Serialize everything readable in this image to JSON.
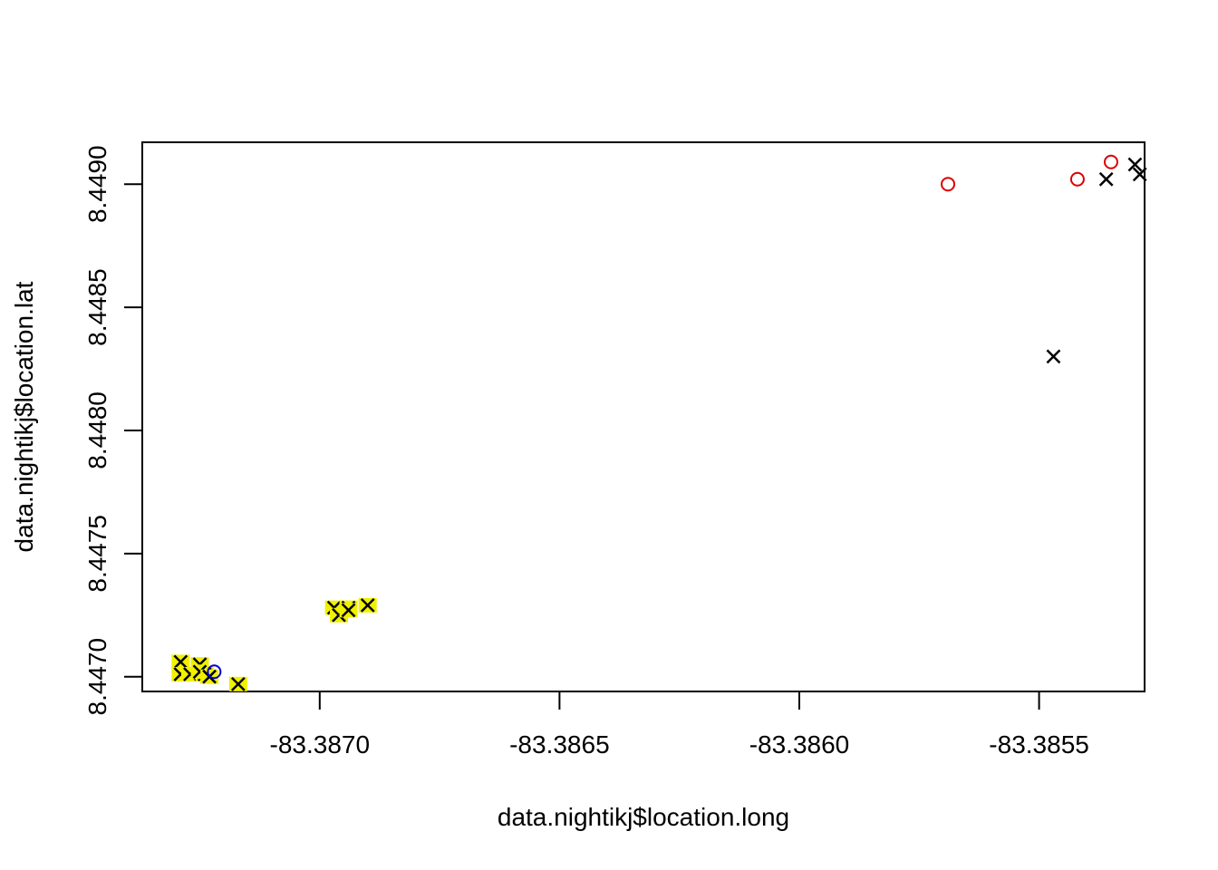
{
  "chart_data": {
    "type": "scatter",
    "title": "",
    "xlabel": "data.nightikj$location.long",
    "ylabel": "data.nightikj$location.lat",
    "xlim": [
      -83.38737,
      -83.38528
    ],
    "ylim": [
      8.44694,
      8.44917
    ],
    "x_ticks": [
      -83.387,
      -83.3865,
      -83.386,
      -83.3855
    ],
    "x_tick_labels": [
      "-83.3870",
      "-83.3865",
      "-83.3860",
      "-83.3855"
    ],
    "y_ticks": [
      8.447,
      8.4475,
      8.448,
      8.4485,
      8.449
    ],
    "y_tick_labels": [
      "8.4470",
      "8.4475",
      "8.4480",
      "8.4485",
      "8.4490"
    ],
    "grid": false,
    "legend": "none",
    "colors": {
      "highlight": "#f0f000",
      "red_circle": "#dd0000",
      "blue_circle": "#0000dd",
      "x_mark": "#000000"
    },
    "series": [
      {
        "marker": "highlighted-x",
        "points": [
          {
            "x": -83.38729,
            "y": 8.44706
          },
          {
            "x": -83.38729,
            "y": 8.44701
          },
          {
            "x": -83.38727,
            "y": 8.44701
          },
          {
            "x": -83.38725,
            "y": 8.44702
          },
          {
            "x": -83.38725,
            "y": 8.44705
          },
          {
            "x": -83.38724,
            "y": 8.44701
          },
          {
            "x": -83.38725,
            "y": 8.44702
          },
          {
            "x": -83.38723,
            "y": 8.447
          },
          {
            "x": -83.38717,
            "y": 8.44697
          },
          {
            "x": -83.38697,
            "y": 8.44728
          },
          {
            "x": -83.38696,
            "y": 8.44725
          },
          {
            "x": -83.38694,
            "y": 8.44728
          },
          {
            "x": -83.38694,
            "y": 8.44727
          },
          {
            "x": -83.3869,
            "y": 8.44729
          }
        ]
      },
      {
        "marker": "blue-circle",
        "points": [
          {
            "x": -83.38722,
            "y": 8.44702
          }
        ]
      },
      {
        "marker": "red-circle",
        "points": [
          {
            "x": -83.38569,
            "y": 8.449
          },
          {
            "x": -83.38542,
            "y": 8.44902
          },
          {
            "x": -83.38535,
            "y": 8.44909
          }
        ]
      },
      {
        "marker": "x",
        "points": [
          {
            "x": -83.38536,
            "y": 8.44902
          },
          {
            "x": -83.3853,
            "y": 8.44908
          },
          {
            "x": -83.38529,
            "y": 8.44904
          },
          {
            "x": -83.38547,
            "y": 8.4483
          }
        ]
      }
    ]
  }
}
